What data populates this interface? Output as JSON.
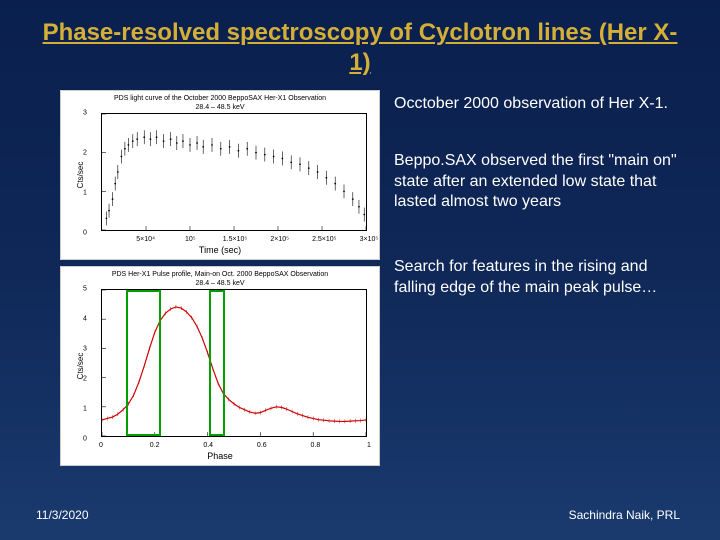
{
  "title": "Phase-resolved spectroscopy of Cyclotron lines (Her X-1)",
  "paragraphs": {
    "p1": "Occtober 2000 observation of Her X-1.",
    "p2": "Beppo.SAX observed the first \"main on\" state after an extended low state that lasted almost two years",
    "p3": "Search for features in the rising and falling edge of the main peak pulse…"
  },
  "footer": {
    "date": "11/3/2020",
    "credit": "Sachindra Naik, PRL"
  },
  "chart1": {
    "type": "scatter-lightcurve",
    "title_small": "PDS light curve of the October 2000 BeppoSAX Her-X1 Observation",
    "subtitle_small": "28.4 – 48.5 keV",
    "xlabel": "Time (sec)",
    "ylabel": "Cts/sec",
    "xlim": [
      0,
      300000
    ],
    "xticks": [
      50000,
      100000,
      150000,
      200000,
      250000,
      300000
    ],
    "xtick_labels": [
      "5×10⁴",
      "10⁵",
      "1.5×10⁵",
      "2×10⁵",
      "2.5×10⁵",
      "3×10⁵"
    ],
    "ylim": [
      0,
      3
    ],
    "yticks": [
      0,
      1,
      2,
      3
    ],
    "point_color": "#000000",
    "background_color": "#ffffff",
    "points": [
      [
        5000,
        0.3
      ],
      [
        8000,
        0.5
      ],
      [
        12000,
        0.8
      ],
      [
        15000,
        1.2
      ],
      [
        18000,
        1.5
      ],
      [
        22000,
        1.9
      ],
      [
        26000,
        2.1
      ],
      [
        30000,
        2.2
      ],
      [
        35000,
        2.3
      ],
      [
        40000,
        2.35
      ],
      [
        48000,
        2.4
      ],
      [
        55000,
        2.35
      ],
      [
        62000,
        2.4
      ],
      [
        70000,
        2.3
      ],
      [
        78000,
        2.35
      ],
      [
        85000,
        2.25
      ],
      [
        92000,
        2.3
      ],
      [
        100000,
        2.2
      ],
      [
        108000,
        2.25
      ],
      [
        115000,
        2.15
      ],
      [
        125000,
        2.2
      ],
      [
        135000,
        2.1
      ],
      [
        145000,
        2.15
      ],
      [
        155000,
        2.05
      ],
      [
        165000,
        2.1
      ],
      [
        175000,
        2.0
      ],
      [
        185000,
        1.95
      ],
      [
        195000,
        1.9
      ],
      [
        205000,
        1.85
      ],
      [
        215000,
        1.75
      ],
      [
        225000,
        1.7
      ],
      [
        235000,
        1.6
      ],
      [
        245000,
        1.5
      ],
      [
        255000,
        1.35
      ],
      [
        265000,
        1.2
      ],
      [
        275000,
        1.0
      ],
      [
        285000,
        0.8
      ],
      [
        292000,
        0.6
      ],
      [
        298000,
        0.4
      ]
    ],
    "point_error": 0.18
  },
  "chart2": {
    "type": "line-pulse-profile",
    "title_small": "PDS Her-X1 Pulse profile, Main-on Oct. 2000 BeppoSAX Observation",
    "subtitle_small": "28.4 – 48.5 keV",
    "xlabel": "Phase",
    "ylabel": "Cts/sec",
    "xlim": [
      0,
      1
    ],
    "xticks": [
      0,
      0.2,
      0.4,
      0.6,
      0.8,
      1.0
    ],
    "ylim": [
      0,
      5
    ],
    "yticks": [
      0,
      1,
      2,
      3,
      4,
      5
    ],
    "line_color": "#cc0000",
    "line_width": 1.2,
    "background_color": "#ffffff",
    "green_regions": [
      [
        0.09,
        0.22
      ],
      [
        0.4,
        0.46
      ]
    ],
    "green_color": "#00a000",
    "profile": [
      [
        0.0,
        0.55
      ],
      [
        0.02,
        0.6
      ],
      [
        0.04,
        0.65
      ],
      [
        0.06,
        0.75
      ],
      [
        0.08,
        0.9
      ],
      [
        0.1,
        1.1
      ],
      [
        0.12,
        1.4
      ],
      [
        0.14,
        1.85
      ],
      [
        0.16,
        2.4
      ],
      [
        0.18,
        3.0
      ],
      [
        0.2,
        3.55
      ],
      [
        0.22,
        3.95
      ],
      [
        0.24,
        4.2
      ],
      [
        0.26,
        4.35
      ],
      [
        0.28,
        4.42
      ],
      [
        0.3,
        4.38
      ],
      [
        0.32,
        4.25
      ],
      [
        0.34,
        4.05
      ],
      [
        0.36,
        3.75
      ],
      [
        0.38,
        3.35
      ],
      [
        0.4,
        2.85
      ],
      [
        0.42,
        2.3
      ],
      [
        0.44,
        1.8
      ],
      [
        0.46,
        1.45
      ],
      [
        0.48,
        1.25
      ],
      [
        0.5,
        1.1
      ],
      [
        0.52,
        0.98
      ],
      [
        0.54,
        0.9
      ],
      [
        0.56,
        0.82
      ],
      [
        0.58,
        0.78
      ],
      [
        0.6,
        0.8
      ],
      [
        0.62,
        0.88
      ],
      [
        0.64,
        0.95
      ],
      [
        0.66,
        1.0
      ],
      [
        0.68,
        0.98
      ],
      [
        0.7,
        0.92
      ],
      [
        0.72,
        0.84
      ],
      [
        0.74,
        0.76
      ],
      [
        0.76,
        0.7
      ],
      [
        0.78,
        0.64
      ],
      [
        0.8,
        0.6
      ],
      [
        0.82,
        0.56
      ],
      [
        0.84,
        0.54
      ],
      [
        0.86,
        0.52
      ],
      [
        0.88,
        0.51
      ],
      [
        0.9,
        0.5
      ],
      [
        0.92,
        0.5
      ],
      [
        0.94,
        0.51
      ],
      [
        0.96,
        0.52
      ],
      [
        0.98,
        0.53
      ],
      [
        1.0,
        0.55
      ]
    ]
  }
}
